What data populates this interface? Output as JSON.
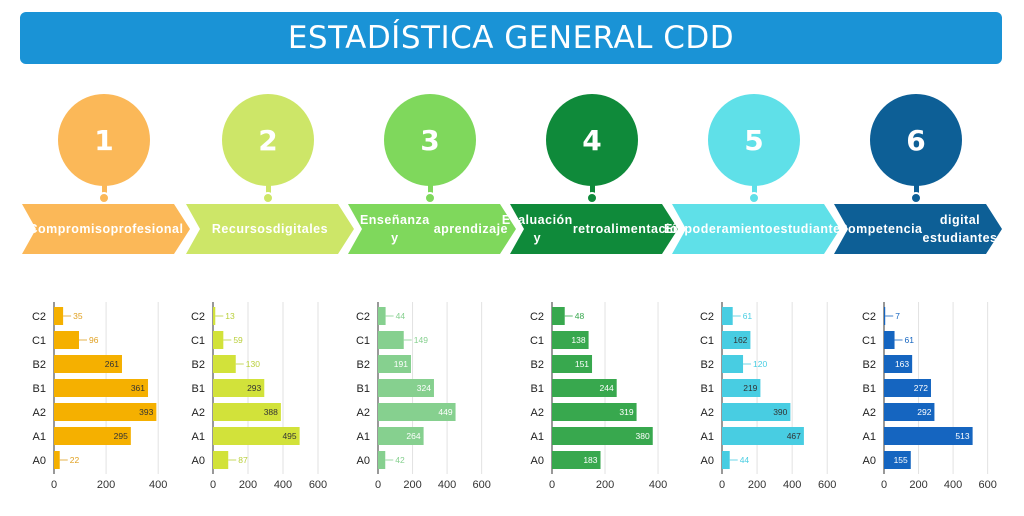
{
  "title": "ESTADÍSTICA GENERAL CDD",
  "steps": [
    {
      "number": "1",
      "line1": "Compromiso",
      "line2": "profesional",
      "color": "#fbb858"
    },
    {
      "number": "2",
      "line1": "Recursos",
      "line2": "digitales",
      "color": "#cde668"
    },
    {
      "number": "3",
      "line1": "Enseñanza y",
      "line2": "aprendizaje",
      "color": "#7fd85c"
    },
    {
      "number": "4",
      "line1": "Evaluación y",
      "line2": "retroalimentación",
      "color": "#0f8a3a"
    },
    {
      "number": "5",
      "line1": "Empoderamiento",
      "line2": "estudiantes",
      "color": "#5fe0e8"
    },
    {
      "number": "6",
      "line1": "Competencia",
      "line2": "digital estudiantes",
      "color": "#0d5f96"
    }
  ],
  "chart_data": [
    {
      "type": "bar",
      "categories": [
        "C2",
        "C1",
        "B2",
        "B1",
        "A2",
        "A1",
        "A0"
      ],
      "values": [
        35,
        96,
        261,
        361,
        393,
        295,
        22
      ],
      "xticks": [
        0,
        200,
        400
      ],
      "xlim": [
        0,
        430
      ],
      "bar_color": "#f5b000",
      "label_color": "#333333",
      "light_label_color": "#e0a020"
    },
    {
      "type": "bar",
      "categories": [
        "C2",
        "C1",
        "B2",
        "B1",
        "A2",
        "A1",
        "A0"
      ],
      "values": [
        13,
        59,
        130,
        293,
        388,
        495,
        87
      ],
      "xticks": [
        0,
        200,
        400,
        600
      ],
      "xlim": [
        0,
        640
      ],
      "bar_color": "#d2e23a",
      "label_color": "#333333",
      "light_label_color": "#b9cf3a"
    },
    {
      "type": "bar",
      "categories": [
        "C2",
        "C1",
        "B2",
        "B1",
        "A2",
        "A1",
        "A0"
      ],
      "values": [
        44,
        149,
        191,
        324,
        449,
        264,
        42
      ],
      "xticks": [
        0,
        200,
        400,
        600
      ],
      "xlim": [
        0,
        660
      ],
      "bar_color": "#86d08f",
      "label_color": "#ffffff",
      "light_label_color": "#86d08f"
    },
    {
      "type": "bar",
      "categories": [
        "C2",
        "C1",
        "B2",
        "B1",
        "A2",
        "A1",
        "A0"
      ],
      "values": [
        48,
        138,
        151,
        244,
        319,
        380,
        183
      ],
      "xticks": [
        0,
        200,
        400
      ],
      "xlim": [
        0,
        430
      ],
      "bar_color": "#38a84e",
      "label_color": "#ffffff",
      "light_label_color": "#38a84e"
    },
    {
      "type": "bar",
      "categories": [
        "C2",
        "C1",
        "B2",
        "B1",
        "A2",
        "A1",
        "A0"
      ],
      "values": [
        61,
        162,
        120,
        219,
        390,
        467,
        44
      ],
      "xticks": [
        0,
        200,
        400,
        600
      ],
      "xlim": [
        0,
        650
      ],
      "bar_color": "#48cde2",
      "label_color": "#333333",
      "light_label_color": "#48cde2"
    },
    {
      "type": "bar",
      "categories": [
        "C2",
        "C1",
        "B2",
        "B1",
        "A2",
        "A1",
        "A0"
      ],
      "values": [
        7,
        61,
        163,
        272,
        292,
        513,
        155
      ],
      "xticks": [
        0,
        200,
        400,
        600
      ],
      "xlim": [
        0,
        660
      ],
      "bar_color": "#1565c0",
      "label_color": "#ffffff",
      "light_label_color": "#1565c0"
    }
  ]
}
